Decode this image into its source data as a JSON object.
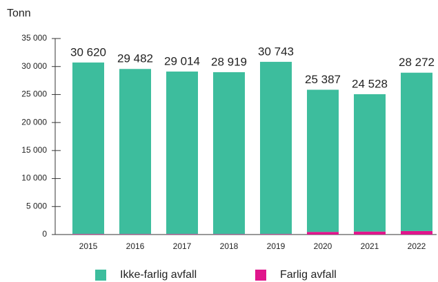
{
  "chart_data": {
    "type": "stacked_bar",
    "y_label": "Tonn",
    "categories": [
      "2015",
      "2016",
      "2017",
      "2018",
      "2019",
      "2020",
      "2021",
      "2022"
    ],
    "series": [
      {
        "name": "Farlig avfall",
        "color": "#e0168c",
        "values": [
          98,
          83,
          89,
          73,
          96,
          468,
          532,
          625
        ]
      },
      {
        "name": "Ikke-farlig avfall",
        "color": "#3dbd9d",
        "values": [
          30620,
          29482,
          29014,
          28919,
          30743,
          25387,
          24528,
          28272
        ],
        "value_labels": [
          "30 620",
          "29 482",
          "29 014",
          "28 919",
          "30 743",
          "25 387",
          "24 528",
          "28 272"
        ]
      }
    ],
    "legend_order": [
      1,
      0
    ],
    "ylim": [
      0,
      35000
    ],
    "yticks": [
      0,
      {
        "value": 5000,
        "label": "5 000"
      },
      {
        "value": 10000,
        "label": "10 000"
      },
      {
        "value": 15000,
        "label": "15 000"
      },
      {
        "value": 20000,
        "label": "20 000"
      },
      {
        "value": 25000,
        "label": "25 000"
      },
      {
        "value": 30000,
        "label": "30 000"
      },
      {
        "value": 35000,
        "label": "35 000"
      }
    ],
    "grid": false
  }
}
